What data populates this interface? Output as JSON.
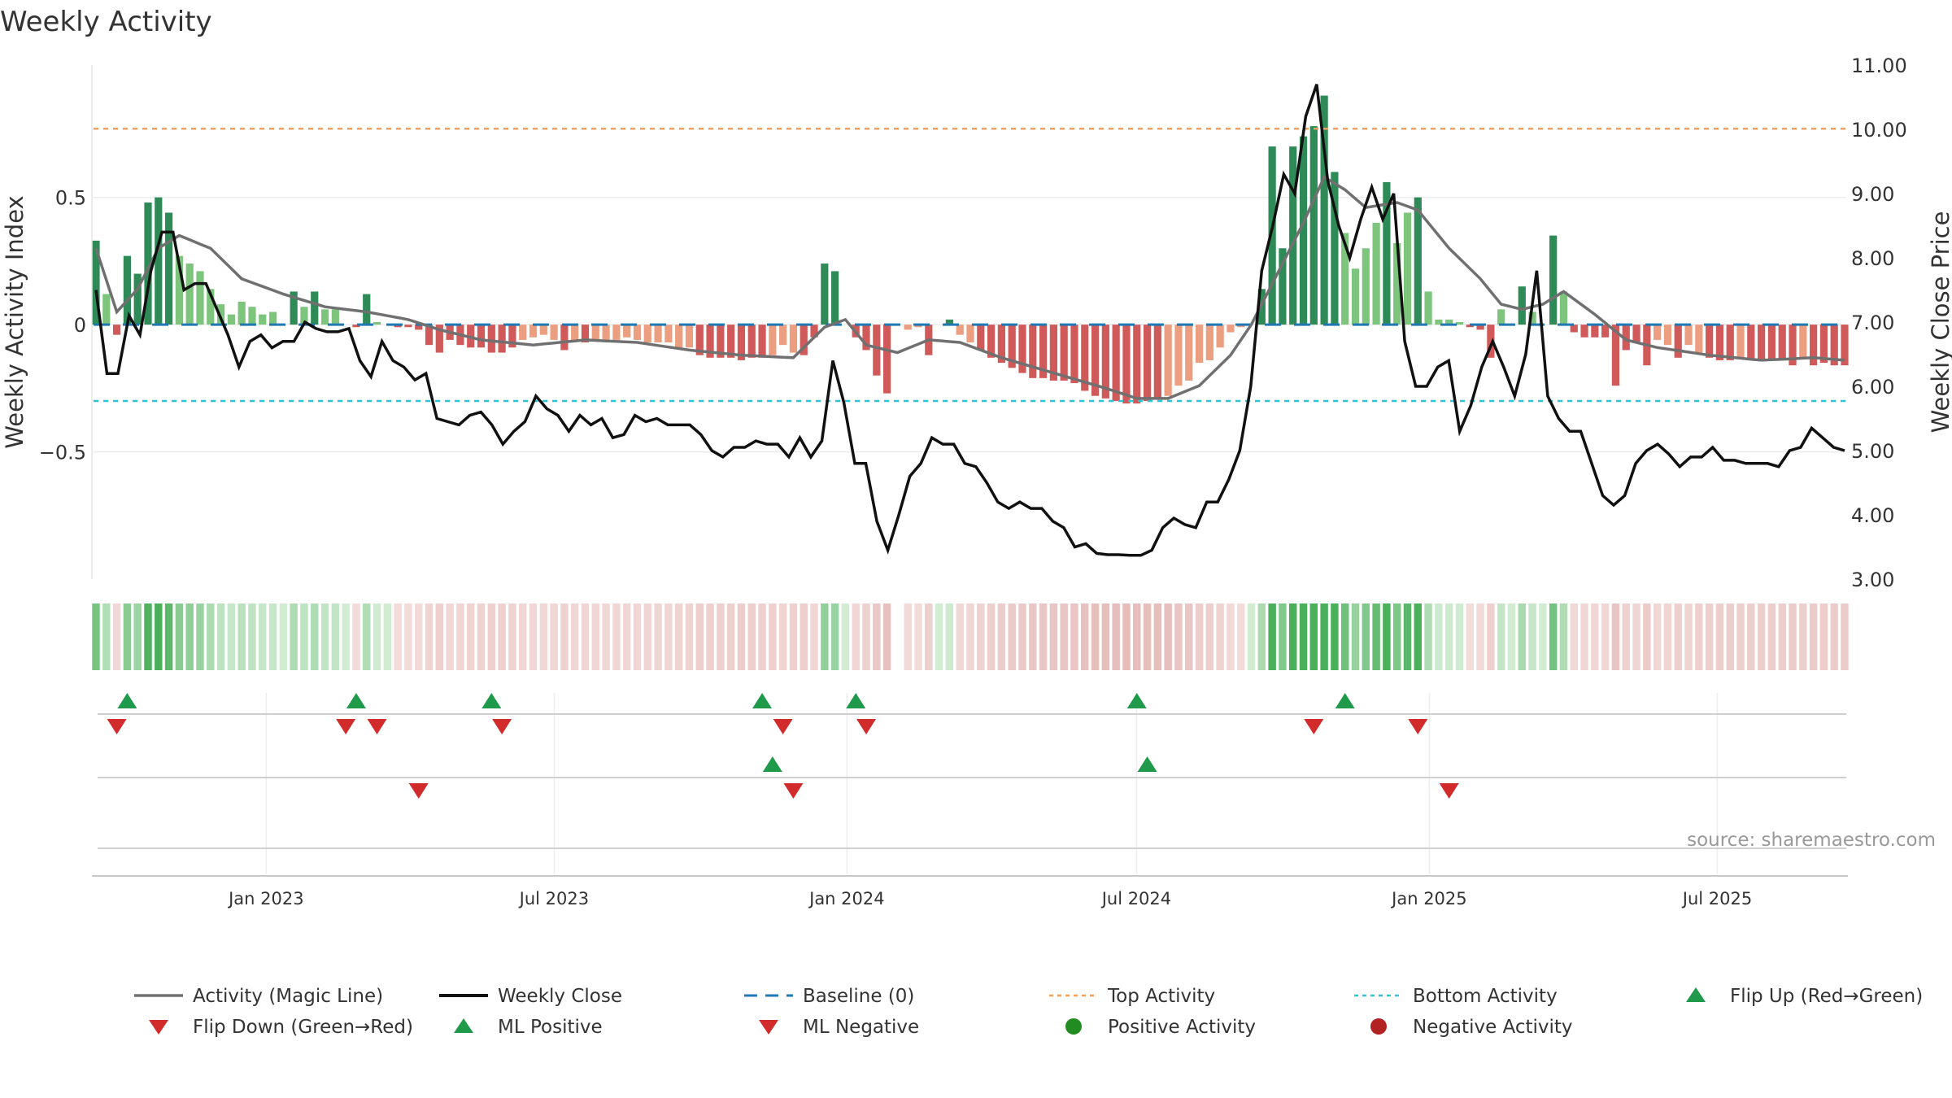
{
  "chart_data": {
    "type": "bar",
    "title": "Weekly Activity",
    "ylabel": "Weekly Activity Index",
    "ylabel_right": "Weekly Close Price",
    "source": "source: sharemaestro.com",
    "y_left_ticks": [
      "0.5",
      "0",
      "−0.5"
    ],
    "y_left_tick_values": [
      0.5,
      0,
      -0.5
    ],
    "y_right_ticks": [
      "11.00",
      "10.00",
      "9.00",
      "8.00",
      "7.00",
      "6.00",
      "5.00",
      "4.00",
      "3.00"
    ],
    "y_right_tick_values": [
      11,
      10,
      9,
      8,
      7,
      6,
      5,
      4,
      3
    ],
    "ylim_left": [
      -1.0,
      1.02
    ],
    "ylim_right": [
      3.0,
      11.0
    ],
    "top_activity": 0.77,
    "bottom_activity": -0.3,
    "x_date_start": "2022-09-16",
    "x_date_end": "2025-09-19",
    "x_ticks": [
      {
        "label": "Jan 2023",
        "date": "2023-01-01"
      },
      {
        "label": "Jul 2023",
        "date": "2023-07-01"
      },
      {
        "label": "Jan 2024",
        "date": "2024-01-01"
      },
      {
        "label": "Jul 2024",
        "date": "2024-07-01"
      },
      {
        "label": "Jan 2025",
        "date": "2025-01-01"
      },
      {
        "label": "Jul 2025",
        "date": "2025-07-01"
      }
    ],
    "activity_anchors": [
      [
        0,
        0.33
      ],
      [
        1,
        0.12
      ],
      [
        2,
        -0.04
      ],
      [
        3,
        0.27
      ],
      [
        4,
        0.2
      ],
      [
        5,
        0.48
      ],
      [
        6,
        0.5
      ],
      [
        7,
        0.44
      ],
      [
        8,
        0.27
      ],
      [
        9,
        0.24
      ],
      [
        10,
        0.21
      ],
      [
        11,
        0.14
      ],
      [
        12,
        0.08
      ],
      [
        13,
        0.04
      ],
      [
        14,
        0.09
      ],
      [
        15,
        0.07
      ],
      [
        16,
        0.04
      ],
      [
        17,
        0.05
      ],
      [
        18,
        0.0
      ],
      [
        19,
        0.13
      ],
      [
        20,
        0.07
      ],
      [
        21,
        0.13
      ],
      [
        22,
        0.06
      ],
      [
        23,
        0.06
      ],
      [
        24,
        0.0
      ],
      [
        25,
        -0.01
      ],
      [
        26,
        0.12
      ],
      [
        27,
        0.01
      ],
      [
        28,
        0.0
      ],
      [
        29,
        -0.01
      ],
      [
        30,
        -0.01
      ],
      [
        31,
        -0.02
      ],
      [
        32,
        -0.08
      ],
      [
        33,
        -0.11
      ],
      [
        34,
        -0.06
      ],
      [
        35,
        -0.08
      ],
      [
        36,
        -0.09
      ],
      [
        37,
        -0.09
      ],
      [
        38,
        -0.11
      ],
      [
        39,
        -0.11
      ],
      [
        40,
        -0.09
      ],
      [
        41,
        -0.06
      ],
      [
        42,
        -0.05
      ],
      [
        43,
        -0.04
      ],
      [
        44,
        -0.06
      ],
      [
        45,
        -0.1
      ],
      [
        46,
        -0.06
      ],
      [
        47,
        -0.07
      ],
      [
        48,
        -0.06
      ],
      [
        49,
        -0.06
      ],
      [
        50,
        -0.06
      ],
      [
        51,
        -0.05
      ],
      [
        52,
        -0.06
      ],
      [
        53,
        -0.07
      ],
      [
        54,
        -0.07
      ],
      [
        55,
        -0.07
      ],
      [
        56,
        -0.09
      ],
      [
        57,
        -0.09
      ],
      [
        58,
        -0.12
      ],
      [
        59,
        -0.13
      ],
      [
        60,
        -0.13
      ],
      [
        61,
        -0.13
      ],
      [
        62,
        -0.14
      ],
      [
        63,
        -0.13
      ],
      [
        64,
        -0.13
      ],
      [
        65,
        -0.12
      ],
      [
        66,
        -0.08
      ],
      [
        67,
        -0.11
      ],
      [
        68,
        -0.12
      ],
      [
        69,
        -0.05
      ],
      [
        70,
        0.24
      ],
      [
        71,
        0.21
      ],
      [
        72,
        0.0
      ],
      [
        73,
        -0.05
      ],
      [
        74,
        -0.1
      ],
      [
        75,
        -0.2
      ],
      [
        76,
        -0.27
      ],
      [
        77,
        0.0
      ],
      [
        78,
        -0.02
      ],
      [
        79,
        -0.01
      ],
      [
        80,
        -0.12
      ],
      [
        81,
        0.0
      ],
      [
        82,
        0.02
      ],
      [
        83,
        -0.04
      ],
      [
        84,
        -0.07
      ],
      [
        85,
        -0.1
      ],
      [
        86,
        -0.13
      ],
      [
        87,
        -0.15
      ],
      [
        88,
        -0.17
      ],
      [
        89,
        -0.19
      ],
      [
        90,
        -0.21
      ],
      [
        91,
        -0.21
      ],
      [
        92,
        -0.22
      ],
      [
        93,
        -0.22
      ],
      [
        94,
        -0.23
      ],
      [
        95,
        -0.26
      ],
      [
        96,
        -0.28
      ],
      [
        97,
        -0.29
      ],
      [
        98,
        -0.3
      ],
      [
        99,
        -0.31
      ],
      [
        100,
        -0.31
      ],
      [
        101,
        -0.3
      ],
      [
        102,
        -0.29
      ],
      [
        103,
        -0.28
      ],
      [
        104,
        -0.24
      ],
      [
        105,
        -0.22
      ],
      [
        106,
        -0.15
      ],
      [
        107,
        -0.14
      ],
      [
        108,
        -0.09
      ],
      [
        109,
        -0.03
      ],
      [
        110,
        -0.01
      ],
      [
        111,
        0.0
      ],
      [
        112,
        0.14
      ],
      [
        113,
        0.7
      ],
      [
        114,
        0.3
      ],
      [
        115,
        0.7
      ],
      [
        116,
        0.74
      ],
      [
        117,
        0.78
      ],
      [
        118,
        0.9
      ],
      [
        119,
        0.6
      ],
      [
        120,
        0.36
      ],
      [
        121,
        0.22
      ],
      [
        122,
        0.3
      ],
      [
        123,
        0.4
      ],
      [
        124,
        0.56
      ],
      [
        125,
        0.32
      ],
      [
        126,
        0.44
      ],
      [
        127,
        0.5
      ],
      [
        128,
        0.13
      ],
      [
        129,
        0.02
      ],
      [
        130,
        0.02
      ],
      [
        131,
        0.01
      ],
      [
        132,
        -0.01
      ],
      [
        133,
        -0.02
      ],
      [
        134,
        -0.13
      ],
      [
        135,
        0.06
      ],
      [
        136,
        0.0
      ],
      [
        137,
        0.15
      ],
      [
        138,
        0.05
      ],
      [
        139,
        0.0
      ],
      [
        140,
        0.35
      ],
      [
        141,
        0.13
      ],
      [
        142,
        -0.03
      ],
      [
        143,
        -0.05
      ],
      [
        144,
        -0.05
      ],
      [
        145,
        -0.05
      ],
      [
        146,
        -0.24
      ],
      [
        147,
        -0.1
      ],
      [
        148,
        -0.07
      ],
      [
        149,
        -0.16
      ],
      [
        150,
        -0.06
      ],
      [
        151,
        -0.08
      ],
      [
        152,
        -0.13
      ],
      [
        153,
        -0.08
      ],
      [
        154,
        -0.11
      ],
      [
        155,
        -0.13
      ],
      [
        156,
        -0.14
      ],
      [
        157,
        -0.14
      ],
      [
        158,
        -0.13
      ],
      [
        159,
        -0.14
      ],
      [
        160,
        -0.14
      ],
      [
        161,
        -0.14
      ],
      [
        162,
        -0.14
      ],
      [
        163,
        -0.16
      ],
      [
        164,
        -0.13
      ],
      [
        165,
        -0.16
      ],
      [
        166,
        -0.15
      ],
      [
        167,
        -0.16
      ],
      [
        168,
        -0.16
      ]
    ],
    "magic_line_anchors": [
      [
        0,
        0.3
      ],
      [
        2,
        0.05
      ],
      [
        4,
        0.14
      ],
      [
        6,
        0.3
      ],
      [
        8,
        0.35
      ],
      [
        11,
        0.3
      ],
      [
        14,
        0.18
      ],
      [
        18,
        0.12
      ],
      [
        22,
        0.07
      ],
      [
        26,
        0.05
      ],
      [
        30,
        0.02
      ],
      [
        33,
        -0.02
      ],
      [
        37,
        -0.06
      ],
      [
        42,
        -0.08
      ],
      [
        47,
        -0.06
      ],
      [
        52,
        -0.07
      ],
      [
        57,
        -0.1
      ],
      [
        62,
        -0.12
      ],
      [
        67,
        -0.13
      ],
      [
        70,
        -0.01
      ],
      [
        72,
        0.02
      ],
      [
        74,
        -0.08
      ],
      [
        77,
        -0.11
      ],
      [
        80,
        -0.06
      ],
      [
        83,
        -0.07
      ],
      [
        87,
        -0.13
      ],
      [
        92,
        -0.19
      ],
      [
        97,
        -0.25
      ],
      [
        100,
        -0.29
      ],
      [
        103,
        -0.29
      ],
      [
        106,
        -0.24
      ],
      [
        109,
        -0.12
      ],
      [
        111,
        0.0
      ],
      [
        114,
        0.24
      ],
      [
        116,
        0.4
      ],
      [
        118,
        0.58
      ],
      [
        120,
        0.53
      ],
      [
        122,
        0.46
      ],
      [
        125,
        0.48
      ],
      [
        127,
        0.45
      ],
      [
        130,
        0.3
      ],
      [
        133,
        0.18
      ],
      [
        135,
        0.08
      ],
      [
        137,
        0.06
      ],
      [
        139,
        0.08
      ],
      [
        141,
        0.13
      ],
      [
        144,
        0.04
      ],
      [
        147,
        -0.06
      ],
      [
        150,
        -0.09
      ],
      [
        155,
        -0.12
      ],
      [
        160,
        -0.14
      ],
      [
        165,
        -0.13
      ],
      [
        168,
        -0.14
      ]
    ],
    "close_anchors": [
      [
        0,
        7.5
      ],
      [
        1,
        6.2
      ],
      [
        2,
        6.2
      ],
      [
        3,
        7.1
      ],
      [
        4,
        6.8
      ],
      [
        5,
        7.8
      ],
      [
        6,
        8.4
      ],
      [
        7,
        8.4
      ],
      [
        8,
        7.5
      ],
      [
        9,
        7.6
      ],
      [
        10,
        7.6
      ],
      [
        11,
        7.2
      ],
      [
        12,
        6.8
      ],
      [
        13,
        6.3
      ],
      [
        14,
        6.7
      ],
      [
        15,
        6.8
      ],
      [
        16,
        6.6
      ],
      [
        17,
        6.7
      ],
      [
        18,
        6.7
      ],
      [
        19,
        7.0
      ],
      [
        20,
        6.9
      ],
      [
        21,
        6.85
      ],
      [
        22,
        6.85
      ],
      [
        23,
        6.9
      ],
      [
        24,
        6.4
      ],
      [
        25,
        6.15
      ],
      [
        26,
        6.7
      ],
      [
        27,
        6.4
      ],
      [
        28,
        6.3
      ],
      [
        29,
        6.1
      ],
      [
        30,
        6.2
      ],
      [
        31,
        5.5
      ],
      [
        32,
        5.45
      ],
      [
        33,
        5.4
      ],
      [
        34,
        5.55
      ],
      [
        35,
        5.6
      ],
      [
        36,
        5.4
      ],
      [
        37,
        5.1
      ],
      [
        38,
        5.3
      ],
      [
        39,
        5.45
      ],
      [
        40,
        5.85
      ],
      [
        41,
        5.65
      ],
      [
        42,
        5.55
      ],
      [
        43,
        5.3
      ],
      [
        44,
        5.55
      ],
      [
        45,
        5.4
      ],
      [
        46,
        5.5
      ],
      [
        47,
        5.2
      ],
      [
        48,
        5.25
      ],
      [
        49,
        5.55
      ],
      [
        50,
        5.45
      ],
      [
        51,
        5.5
      ],
      [
        52,
        5.4
      ],
      [
        53,
        5.4
      ],
      [
        54,
        5.4
      ],
      [
        55,
        5.25
      ],
      [
        56,
        5.0
      ],
      [
        57,
        4.9
      ],
      [
        58,
        5.05
      ],
      [
        59,
        5.05
      ],
      [
        60,
        5.15
      ],
      [
        61,
        5.1
      ],
      [
        62,
        5.1
      ],
      [
        63,
        4.9
      ],
      [
        64,
        5.2
      ],
      [
        65,
        4.9
      ],
      [
        66,
        5.15
      ],
      [
        67,
        6.4
      ],
      [
        68,
        5.75
      ],
      [
        69,
        4.8
      ],
      [
        70,
        4.8
      ],
      [
        71,
        3.9
      ],
      [
        72,
        3.45
      ],
      [
        73,
        4.0
      ],
      [
        74,
        4.6
      ],
      [
        75,
        4.8
      ],
      [
        76,
        5.2
      ],
      [
        77,
        5.1
      ],
      [
        78,
        5.1
      ],
      [
        79,
        4.8
      ],
      [
        80,
        4.75
      ],
      [
        81,
        4.5
      ],
      [
        82,
        4.2
      ],
      [
        83,
        4.1
      ],
      [
        84,
        4.2
      ],
      [
        85,
        4.1
      ],
      [
        86,
        4.1
      ],
      [
        87,
        3.9
      ],
      [
        88,
        3.8
      ],
      [
        89,
        3.5
      ],
      [
        90,
        3.55
      ],
      [
        91,
        3.4
      ],
      [
        92,
        3.38
      ],
      [
        93,
        3.38
      ],
      [
        94,
        3.37
      ],
      [
        95,
        3.37
      ],
      [
        96,
        3.45
      ],
      [
        97,
        3.8
      ],
      [
        98,
        3.95
      ],
      [
        99,
        3.85
      ],
      [
        100,
        3.8
      ],
      [
        101,
        4.2
      ],
      [
        102,
        4.2
      ],
      [
        103,
        4.55
      ],
      [
        104,
        5.0
      ],
      [
        105,
        6.0
      ],
      [
        106,
        7.8
      ],
      [
        107,
        8.5
      ],
      [
        108,
        9.3
      ],
      [
        109,
        9.0
      ],
      [
        110,
        10.2
      ],
      [
        111,
        10.7
      ],
      [
        112,
        9.2
      ],
      [
        113,
        8.5
      ],
      [
        114,
        8.0
      ],
      [
        115,
        8.6
      ],
      [
        116,
        9.1
      ],
      [
        117,
        8.6
      ],
      [
        118,
        9.0
      ],
      [
        119,
        6.7
      ],
      [
        120,
        6.0
      ],
      [
        121,
        6.0
      ],
      [
        122,
        6.3
      ],
      [
        123,
        6.4
      ],
      [
        124,
        5.3
      ],
      [
        125,
        5.7
      ],
      [
        126,
        6.3
      ],
      [
        127,
        6.7
      ],
      [
        128,
        6.3
      ],
      [
        129,
        5.85
      ],
      [
        130,
        6.5
      ],
      [
        131,
        7.8
      ],
      [
        132,
        5.85
      ],
      [
        133,
        5.5
      ],
      [
        134,
        5.3
      ],
      [
        135,
        5.3
      ],
      [
        136,
        4.8
      ],
      [
        137,
        4.3
      ],
      [
        138,
        4.15
      ],
      [
        139,
        4.3
      ],
      [
        140,
        4.8
      ],
      [
        141,
        5.0
      ],
      [
        142,
        5.1
      ],
      [
        143,
        4.95
      ],
      [
        144,
        4.75
      ],
      [
        145,
        4.9
      ],
      [
        146,
        4.9
      ],
      [
        147,
        5.05
      ],
      [
        148,
        4.85
      ],
      [
        149,
        4.85
      ],
      [
        150,
        4.8
      ],
      [
        151,
        4.8
      ],
      [
        152,
        4.8
      ],
      [
        153,
        4.75
      ],
      [
        154,
        5.0
      ],
      [
        155,
        5.05
      ],
      [
        156,
        5.35
      ],
      [
        157,
        5.2
      ],
      [
        158,
        5.05
      ],
      [
        159,
        5.0
      ]
    ],
    "flip_up_weeks": [
      3,
      25,
      38,
      64,
      73,
      100,
      120
    ],
    "flip_down_weeks": [
      2,
      24,
      27,
      39,
      66,
      74,
      117,
      127
    ],
    "ml_positive_weeks": [
      65,
      101
    ],
    "ml_negative_weeks": [
      31,
      67,
      130
    ],
    "legend": [
      "Activity (Magic Line)",
      "Weekly Close",
      "Baseline (0)",
      "Top Activity",
      "Bottom Activity",
      "Flip Up (Red→Green)",
      "Flip Down (Green→Red)",
      "ML Positive",
      "ML Negative",
      "Positive Activity",
      "Negative Activity"
    ],
    "legend_placement": "bottom",
    "grid": true
  },
  "colors": {
    "magic_line": "#707070",
    "close": "#111111",
    "baseline": "#1f77b4",
    "top_activity": "#f0a060",
    "bottom_activity": "#2ec4d6",
    "flip_up": "#1f9a4a",
    "flip_down": "#d22b2b",
    "ml_positive": "#1f9a4a",
    "ml_negative": "#d22b2b",
    "positive_activity": "#228b22",
    "negative_activity": "#b22222",
    "pos_dark": "#2e8b57",
    "pos_light": "#7dc47d",
    "neg_dark": "#d05a5a",
    "neg_light": "#eb9e80"
  }
}
